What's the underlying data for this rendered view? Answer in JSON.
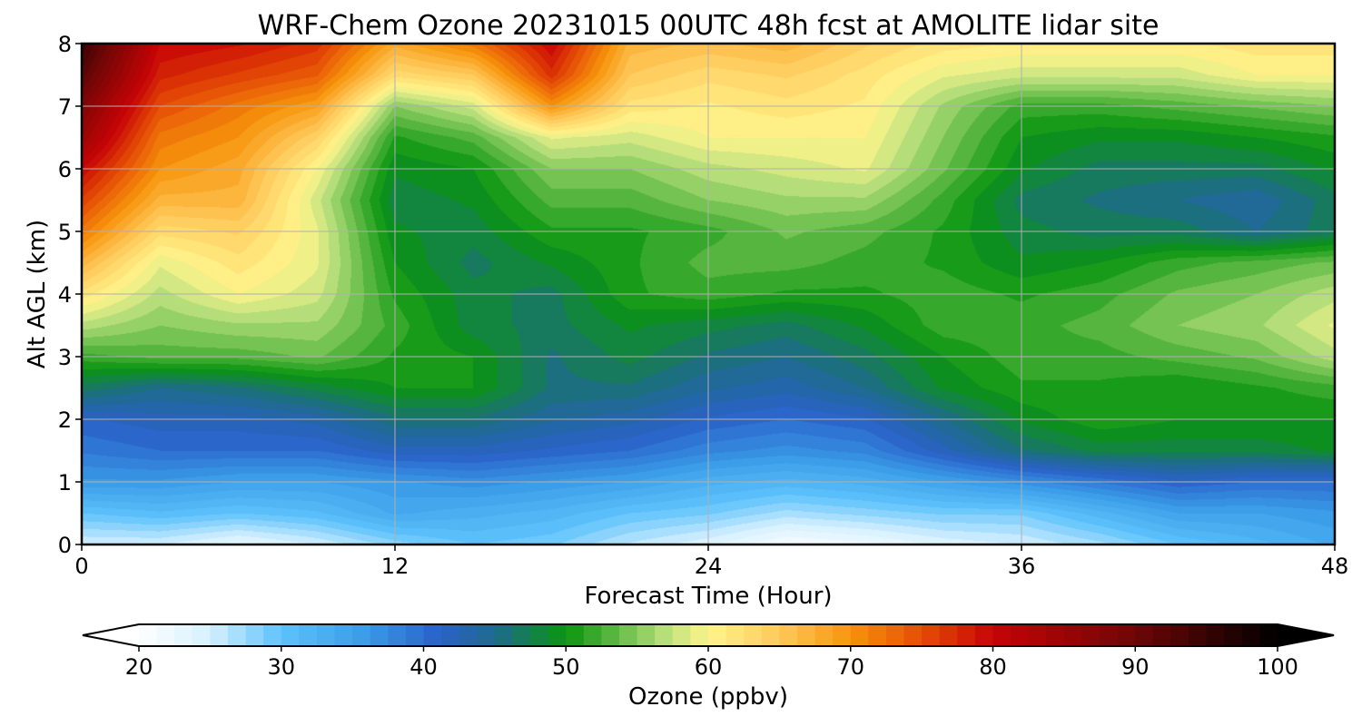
{
  "chart_data": {
    "type": "heatmap",
    "title": "WRF-Chem Ozone  20231015 00UTC 48h fcst at AMOLITE lidar site",
    "xlabel": "Forecast Time (Hour)",
    "ylabel": "Alt AGL (km)",
    "xlim": [
      0,
      48
    ],
    "ylim": [
      0,
      8
    ],
    "xticks": [
      "0",
      "12",
      "24",
      "36",
      "48"
    ],
    "yticks": [
      "0",
      "1",
      "2",
      "3",
      "4",
      "5",
      "6",
      "7",
      "8"
    ],
    "grid": true,
    "x": [
      0,
      3,
      6,
      9,
      12,
      15,
      18,
      21,
      24,
      27,
      30,
      33,
      36,
      39,
      42,
      45,
      48
    ],
    "y": [
      0,
      0.5,
      1,
      1.5,
      2,
      2.5,
      3,
      3.5,
      4,
      4.5,
      5,
      5.5,
      6,
      6.5,
      7,
      7.5,
      8
    ],
    "z_rows_by_altitude": [
      [
        25,
        25,
        23,
        25,
        28,
        30,
        29,
        26,
        24,
        21,
        22,
        24,
        25,
        27,
        30,
        32,
        34
      ],
      [
        30,
        31,
        30,
        31,
        34,
        33,
        32,
        30,
        29,
        27,
        28,
        29,
        29,
        32,
        35,
        35,
        36
      ],
      [
        36,
        36,
        35,
        35,
        36,
        37,
        36,
        35,
        33,
        32,
        33,
        35,
        37,
        39,
        41,
        40,
        40
      ],
      [
        39,
        40,
        40,
        40,
        42,
        42,
        41,
        40,
        38,
        37,
        38,
        42,
        46,
        48,
        48,
        48,
        49
      ],
      [
        41,
        42,
        42,
        43,
        46,
        46,
        44,
        43,
        41,
        40,
        41,
        45,
        49,
        51,
        50,
        50,
        50
      ],
      [
        47,
        45,
        46,
        48,
        50,
        50,
        46,
        46,
        44,
        43,
        45,
        49,
        51,
        51,
        50,
        51,
        52
      ],
      [
        52,
        53,
        53,
        54,
        51,
        50,
        46,
        48,
        46,
        45,
        47,
        50,
        52,
        52,
        53,
        54,
        57
      ],
      [
        57,
        55,
        56,
        56,
        52,
        48,
        47,
        49,
        48,
        47,
        49,
        52,
        52,
        53,
        55,
        56,
        59
      ],
      [
        62,
        57,
        60,
        58,
        51,
        48,
        47,
        51,
        52,
        51,
        51,
        52,
        51,
        52,
        54,
        55,
        57
      ],
      [
        67,
        59,
        62,
        59,
        50,
        47,
        49,
        51,
        53,
        53,
        52,
        51,
        49,
        50,
        52,
        53,
        54
      ],
      [
        72,
        63,
        64,
        59,
        49,
        48,
        51,
        51,
        52,
        54,
        53,
        51,
        48,
        47,
        47,
        45,
        47
      ],
      [
        76,
        67,
        67,
        58,
        48,
        49,
        53,
        53,
        55,
        56,
        56,
        52,
        47,
        46,
        45,
        44,
        47
      ],
      [
        80,
        70,
        68,
        60,
        49,
        50,
        55,
        55,
        57,
        58,
        59,
        54,
        49,
        47,
        47,
        47,
        49
      ],
      [
        85,
        72,
        70,
        64,
        51,
        53,
        59,
        58,
        60,
        60,
        60,
        55,
        50,
        49,
        49,
        50,
        51
      ],
      [
        88,
        75,
        72,
        69,
        55,
        58,
        70,
        62,
        61,
        62,
        61,
        56,
        52,
        52,
        53,
        54,
        55
      ],
      [
        92,
        78,
        76,
        74,
        63,
        65,
        77,
        65,
        63,
        64,
        62,
        59,
        58,
        58,
        58,
        60,
        60
      ],
      [
        95,
        80,
        79,
        77,
        68,
        72,
        80,
        67,
        66,
        67,
        64,
        62,
        61,
        61,
        61,
        62,
        62
      ]
    ],
    "colorbar": {
      "label": "Ozone  (ppbv)",
      "min": 20,
      "max": 100,
      "ticks": [
        "20",
        "30",
        "40",
        "50",
        "60",
        "70",
        "80",
        "90",
        "100"
      ],
      "extend": "both",
      "stops": [
        {
          "v": 20,
          "c": "#ffffff"
        },
        {
          "v": 25,
          "c": "#d6f0ff"
        },
        {
          "v": 30,
          "c": "#5dc2fb"
        },
        {
          "v": 36,
          "c": "#3a9be8"
        },
        {
          "v": 41,
          "c": "#2a62c8"
        },
        {
          "v": 45,
          "c": "#1f6a8e"
        },
        {
          "v": 50,
          "c": "#0a950f"
        },
        {
          "v": 53,
          "c": "#52b43c"
        },
        {
          "v": 57,
          "c": "#b9e07c"
        },
        {
          "v": 60,
          "c": "#fff48c"
        },
        {
          "v": 65,
          "c": "#ffc85a"
        },
        {
          "v": 70,
          "c": "#f7940c"
        },
        {
          "v": 75,
          "c": "#e54d05"
        },
        {
          "v": 80,
          "c": "#c60406"
        },
        {
          "v": 90,
          "c": "#6e0606"
        },
        {
          "v": 100,
          "c": "#000000"
        }
      ]
    }
  }
}
